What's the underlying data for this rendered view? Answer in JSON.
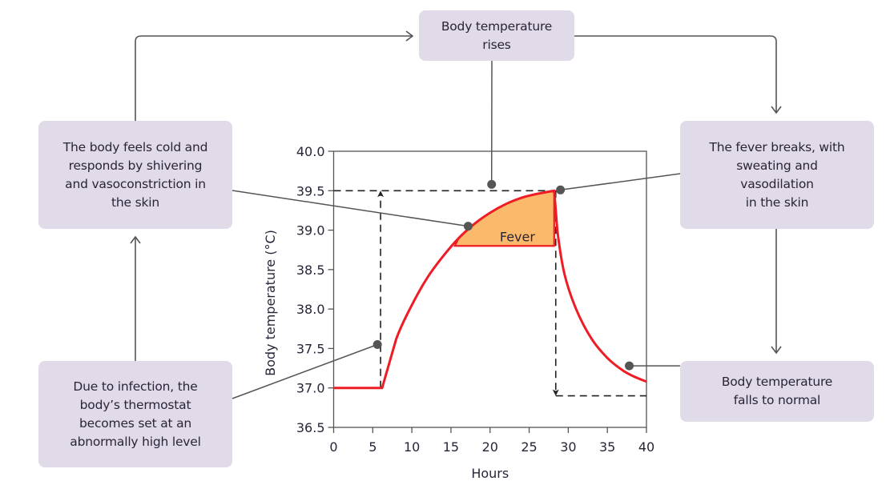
{
  "boxes": {
    "rises": "Body temperature\nrises",
    "cold": "The body feels cold and\nresponds by shivering\nand vasoconstriction in\nthe skin",
    "infection": "Due to infection, the\nbody’s thermostat\nbecomes set at an\nabnormally high level",
    "breaks": "The fever breaks, with\nsweating and\nvasodilation\nin the skin",
    "normal": "Body temperature\nfalls to normal"
  },
  "colors": {
    "box_fill": "#e1dbe9",
    "curve": "#ee1c25",
    "fever_fill": "#fbb96b",
    "connector": "#555555",
    "dot": "#555555"
  },
  "chart_data": {
    "type": "line",
    "title": "",
    "xlabel": "Hours",
    "ylabel": "Body temperature (°C)",
    "xlim": [
      0,
      40
    ],
    "ylim": [
      36.5,
      40.0
    ],
    "xticks": [
      "0",
      "5",
      "10",
      "15",
      "20",
      "25",
      "30",
      "35",
      "40"
    ],
    "xtick_values": [
      0,
      5,
      10,
      15,
      20,
      25,
      30,
      35,
      40
    ],
    "yticks": [
      "36.5",
      "37.0",
      "37.5",
      "38.0",
      "38.5",
      "39.0",
      "39.5",
      "40.0"
    ],
    "ytick_values": [
      36.5,
      37.0,
      37.5,
      38.0,
      38.5,
      39.0,
      39.5,
      40.0
    ],
    "grid": false,
    "series": [
      {
        "name": "Body temperature",
        "x": [
          0,
          6.2,
          8,
          10,
          12,
          14,
          16,
          18,
          20,
          22,
          24,
          26,
          28.2,
          28.6,
          29.5,
          31,
          33,
          35,
          37,
          38.5,
          40
        ],
        "y": [
          37.0,
          37.0,
          37.62,
          38.05,
          38.4,
          38.67,
          38.9,
          39.08,
          39.22,
          39.33,
          39.41,
          39.46,
          39.5,
          39.0,
          38.45,
          38.0,
          37.62,
          37.38,
          37.22,
          37.14,
          37.08
        ]
      }
    ],
    "fever_region": {
      "label": "Fever",
      "x_start": 15.5,
      "x_end": 28.2,
      "threshold": 38.8
    },
    "setpoint_high": 39.5,
    "setpoint_normal": 36.9,
    "setpoint_rise_time": 6.0,
    "setpoint_fall_time": 28.4,
    "markers": [
      {
        "name": "infection-point",
        "x": 5.6,
        "y": 37.55
      },
      {
        "name": "cold-point",
        "x": 17.2,
        "y": 39.05
      },
      {
        "name": "rises-point",
        "x": 20.2,
        "y": 39.58
      },
      {
        "name": "breaks-point",
        "x": 29.0,
        "y": 39.51
      },
      {
        "name": "normal-point",
        "x": 37.8,
        "y": 37.28
      }
    ]
  }
}
